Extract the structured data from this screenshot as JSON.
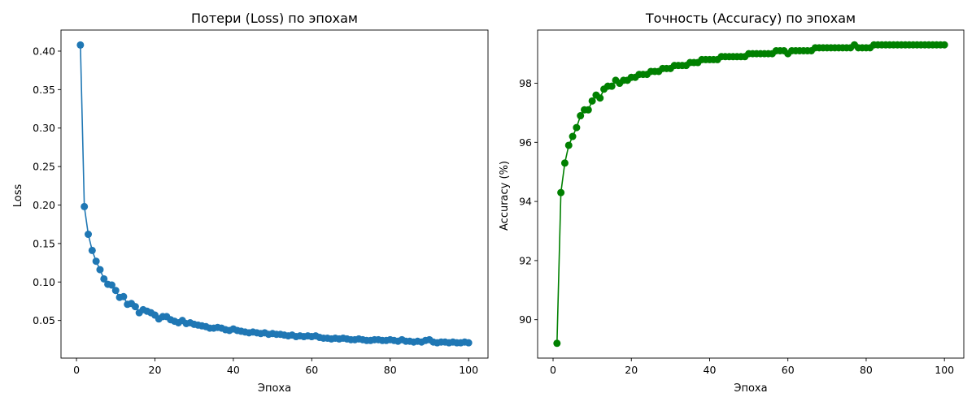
{
  "chart_data": [
    {
      "type": "line",
      "title": "Потери (Loss) по эпохам",
      "xlabel": "Эпоха",
      "ylabel": "Loss",
      "xlim": [
        -3.95,
        104.95
      ],
      "ylim": [
        0.0011,
        0.4274
      ],
      "x_ticks": [
        0,
        20,
        40,
        60,
        80,
        100
      ],
      "y_ticks": [
        0.05,
        0.1,
        0.15,
        0.2,
        0.25,
        0.3,
        0.35,
        0.4
      ],
      "y_tick_labels": [
        "0.05",
        "0.10",
        "0.15",
        "0.20",
        "0.25",
        "0.30",
        "0.35",
        "0.40"
      ],
      "grid": false,
      "color": "#1f77b4",
      "marker": "circle",
      "x": [
        1,
        2,
        3,
        4,
        5,
        6,
        7,
        8,
        9,
        10,
        11,
        12,
        13,
        14,
        15,
        16,
        17,
        18,
        19,
        20,
        21,
        22,
        23,
        24,
        25,
        26,
        27,
        28,
        29,
        30,
        31,
        32,
        33,
        34,
        35,
        36,
        37,
        38,
        39,
        40,
        41,
        42,
        43,
        44,
        45,
        46,
        47,
        48,
        49,
        50,
        51,
        52,
        53,
        54,
        55,
        56,
        57,
        58,
        59,
        60,
        61,
        62,
        63,
        64,
        65,
        66,
        67,
        68,
        69,
        70,
        71,
        72,
        73,
        74,
        75,
        76,
        77,
        78,
        79,
        80,
        81,
        82,
        83,
        84,
        85,
        86,
        87,
        88,
        89,
        90,
        91,
        92,
        93,
        94,
        95,
        96,
        97,
        98,
        99,
        100
      ],
      "y": [
        0.408,
        0.198,
        0.162,
        0.141,
        0.127,
        0.116,
        0.104,
        0.097,
        0.096,
        0.089,
        0.08,
        0.081,
        0.071,
        0.072,
        0.068,
        0.06,
        0.064,
        0.062,
        0.06,
        0.057,
        0.052,
        0.055,
        0.055,
        0.051,
        0.049,
        0.047,
        0.05,
        0.046,
        0.047,
        0.045,
        0.044,
        0.043,
        0.042,
        0.04,
        0.04,
        0.041,
        0.04,
        0.038,
        0.037,
        0.039,
        0.037,
        0.036,
        0.035,
        0.034,
        0.035,
        0.034,
        0.033,
        0.034,
        0.032,
        0.033,
        0.032,
        0.032,
        0.031,
        0.03,
        0.031,
        0.029,
        0.03,
        0.029,
        0.03,
        0.029,
        0.03,
        0.028,
        0.027,
        0.027,
        0.026,
        0.027,
        0.026,
        0.027,
        0.026,
        0.025,
        0.025,
        0.026,
        0.025,
        0.024,
        0.024,
        0.025,
        0.025,
        0.024,
        0.024,
        0.025,
        0.024,
        0.023,
        0.025,
        0.023,
        0.023,
        0.022,
        0.023,
        0.022,
        0.024,
        0.025,
        0.022,
        0.021,
        0.022,
        0.022,
        0.021,
        0.022,
        0.021,
        0.021,
        0.022,
        0.021
      ]
    },
    {
      "type": "line",
      "title": "Точность (Accuracy) по эпохам",
      "xlabel": "Эпоха",
      "ylabel": "Accuracy (%)",
      "xlim": [
        -3.95,
        104.95
      ],
      "ylim": [
        88.7,
        99.8
      ],
      "x_ticks": [
        0,
        20,
        40,
        60,
        80,
        100
      ],
      "y_ticks": [
        90,
        92,
        94,
        96,
        98
      ],
      "y_tick_labels": [
        "90",
        "92",
        "94",
        "96",
        "98"
      ],
      "grid": false,
      "color": "#008000",
      "marker": "circle",
      "x": [
        1,
        2,
        3,
        4,
        5,
        6,
        7,
        8,
        9,
        10,
        11,
        12,
        13,
        14,
        15,
        16,
        17,
        18,
        19,
        20,
        21,
        22,
        23,
        24,
        25,
        26,
        27,
        28,
        29,
        30,
        31,
        32,
        33,
        34,
        35,
        36,
        37,
        38,
        39,
        40,
        41,
        42,
        43,
        44,
        45,
        46,
        47,
        48,
        49,
        50,
        51,
        52,
        53,
        54,
        55,
        56,
        57,
        58,
        59,
        60,
        61,
        62,
        63,
        64,
        65,
        66,
        67,
        68,
        69,
        70,
        71,
        72,
        73,
        74,
        75,
        76,
        77,
        78,
        79,
        80,
        81,
        82,
        83,
        84,
        85,
        86,
        87,
        88,
        89,
        90,
        91,
        92,
        93,
        94,
        95,
        96,
        97,
        98,
        99,
        100
      ],
      "y": [
        89.2,
        94.3,
        95.3,
        95.9,
        96.2,
        96.5,
        96.9,
        97.1,
        97.1,
        97.4,
        97.6,
        97.5,
        97.8,
        97.9,
        97.9,
        98.1,
        98.0,
        98.1,
        98.1,
        98.2,
        98.2,
        98.3,
        98.3,
        98.3,
        98.4,
        98.4,
        98.4,
        98.5,
        98.5,
        98.5,
        98.6,
        98.6,
        98.6,
        98.6,
        98.7,
        98.7,
        98.7,
        98.8,
        98.8,
        98.8,
        98.8,
        98.8,
        98.9,
        98.9,
        98.9,
        98.9,
        98.9,
        98.9,
        98.9,
        99.0,
        99.0,
        99.0,
        99.0,
        99.0,
        99.0,
        99.0,
        99.1,
        99.1,
        99.1,
        99.0,
        99.1,
        99.1,
        99.1,
        99.1,
        99.1,
        99.1,
        99.2,
        99.2,
        99.2,
        99.2,
        99.2,
        99.2,
        99.2,
        99.2,
        99.2,
        99.2,
        99.3,
        99.2,
        99.2,
        99.2,
        99.2,
        99.3,
        99.3,
        99.3,
        99.3,
        99.3,
        99.3,
        99.3,
        99.3,
        99.3,
        99.3,
        99.3,
        99.3,
        99.3,
        99.3,
        99.3,
        99.3,
        99.3,
        99.3,
        99.3
      ]
    }
  ]
}
